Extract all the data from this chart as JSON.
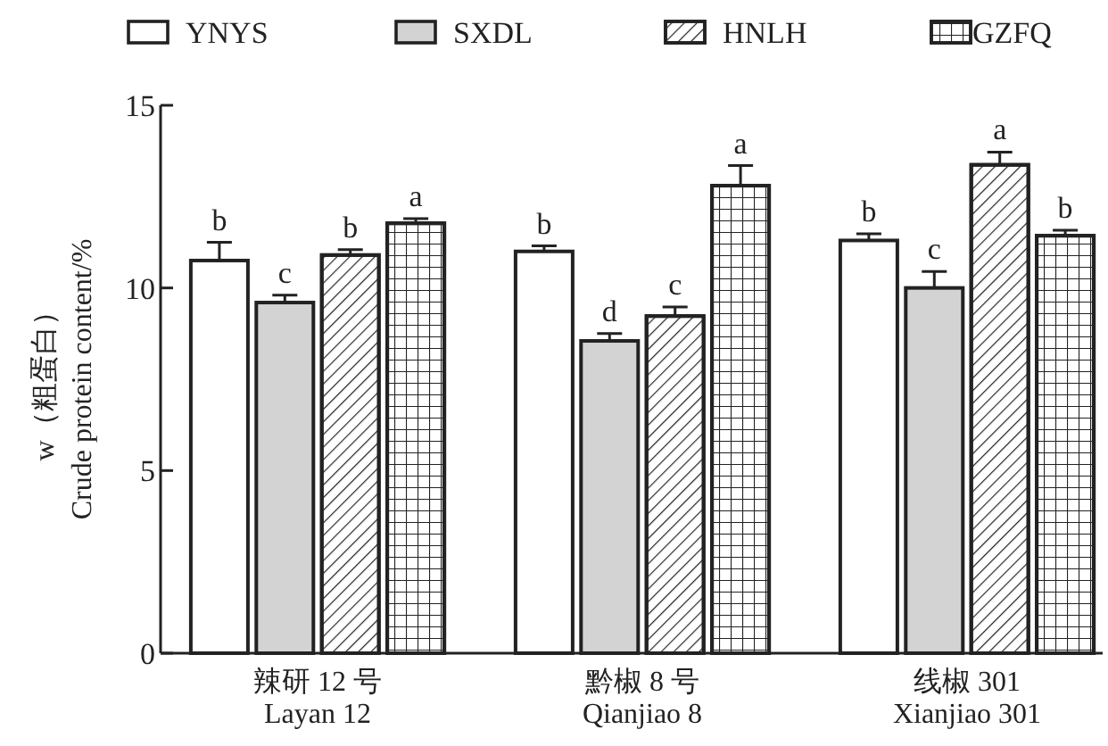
{
  "chart_data": {
    "type": "bar",
    "categories": [
      "辣研 12 号\nLayan 12",
      "黔椒 8 号\nQianjiao 8",
      "线椒 301\nXianjiao 301"
    ],
    "ylabel": "w（粗蛋白）\nCrude protein content/%",
    "ylim": [
      0,
      15
    ],
    "yticks": [
      0,
      5,
      10,
      15
    ],
    "legend": "top",
    "series": [
      {
        "name": "YNYS",
        "color": "#ffffff",
        "values": [
          10.75,
          11.0,
          11.3
        ],
        "errors": [
          0.5,
          0.15,
          0.18
        ]
      },
      {
        "name": "SXDL",
        "color": "#d3d3d3",
        "values": [
          9.6,
          8.55,
          10.0
        ],
        "errors": [
          0.2,
          0.2,
          0.45
        ]
      },
      {
        "name": "HNLH",
        "color": "#ffffff",
        "values": [
          10.9,
          9.23,
          13.37
        ],
        "errors": [
          0.15,
          0.25,
          0.35
        ]
      },
      {
        "name": "GZFQ",
        "color": "#ffffff",
        "values": [
          11.77,
          12.8,
          11.43
        ],
        "errors": [
          0.13,
          0.55,
          0.15
        ]
      }
    ],
    "annotations": [
      "b",
      "c",
      "b",
      "a",
      "b",
      "d",
      "c",
      "a",
      "b",
      "c",
      "a",
      "b"
    ]
  }
}
